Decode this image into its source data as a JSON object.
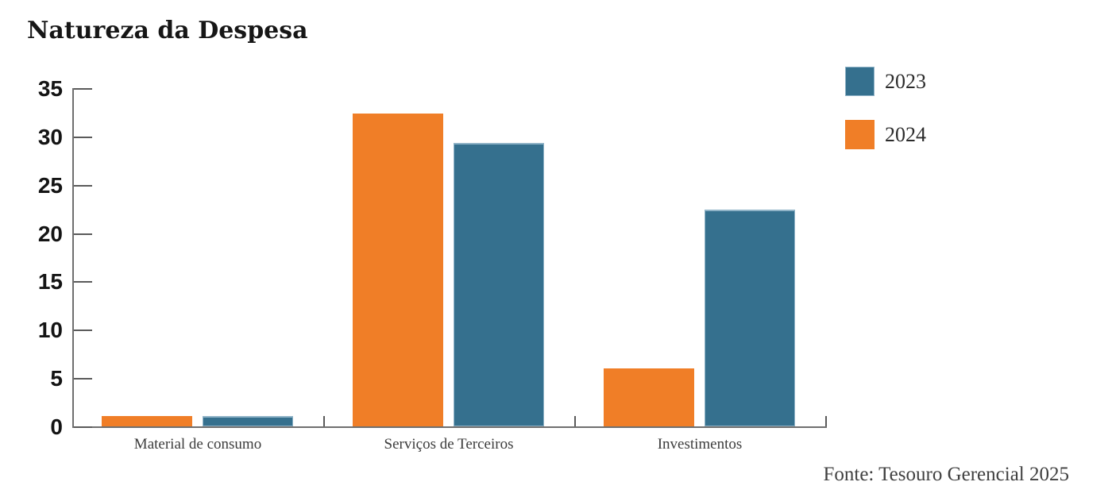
{
  "chart_data": {
    "type": "bar",
    "title": "Natureza da Despesa",
    "categories": [
      "Material de consumo",
      "Serviços de Terceiros",
      "Investimentos"
    ],
    "series": [
      {
        "name": "2024",
        "color": "#F07E27",
        "values": [
          1.1,
          32.4,
          6.0
        ]
      },
      {
        "name": "2023",
        "color": "#35708E",
        "edge_color": "#8FB3C7",
        "values": [
          1.1,
          29.3,
          22.4
        ]
      }
    ],
    "bar_order_in_group": [
      "2024",
      "2023"
    ],
    "legend": [
      {
        "label": "2023",
        "color": "#35708E",
        "edge_color": "#8FB3C7"
      },
      {
        "label": "2024",
        "color": "#F07E27",
        "edge_color": ""
      }
    ],
    "legend_position": "top-right",
    "xlabel": "",
    "ylabel": "",
    "ylim": [
      0,
      35
    ],
    "yticks": [
      0,
      5,
      10,
      15,
      20,
      25,
      30,
      35
    ],
    "grid": false,
    "tick_direction": "in",
    "annotations": [
      "Fonte: Tesouro Gerencial 2025"
    ],
    "axis_color": "#6F6F6F",
    "tick_label_color": "#141414",
    "category_label_color": "#3C3C3C",
    "title_color": "#161616",
    "source_color": "#404040",
    "background_color": "#FFFFFF"
  }
}
